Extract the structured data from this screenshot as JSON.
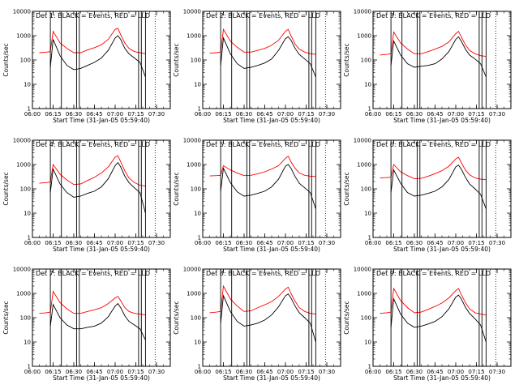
{
  "chart_data": {
    "type": "line",
    "xlabel": "Start Time (31-Jan-05 05:59:40)",
    "ylabel": "Counts/sec",
    "y_scale": "log",
    "ylim": [
      1,
      10000
    ],
    "y_ticks": [
      1,
      10,
      100,
      1000,
      10000
    ],
    "y_tick_labels": [
      "1",
      "10",
      "100",
      "1000",
      "10000"
    ],
    "xlim": [
      "06:00",
      "07:40"
    ],
    "x_ticks": [
      "06:00",
      "06:15",
      "06:30",
      "06:45",
      "07:00",
      "07:15",
      "07:30"
    ],
    "grid": false,
    "series_names": [
      "Events",
      "LLD"
    ],
    "series_colors": {
      "Events": "#000000",
      "LLD": "#ff0000"
    },
    "vertical_markers": [
      "06:13",
      "06:21",
      "06:32",
      "06:34",
      "07:17",
      "07:19",
      "07:22"
    ],
    "dotted_marker": "07:29",
    "sample_times": [
      "06:00",
      "06:05",
      "06:10",
      "06:13",
      "06:15",
      "06:20",
      "06:25",
      "06:30",
      "06:35",
      "06:40",
      "06:45",
      "06:50",
      "06:55",
      "07:00",
      "07:02",
      "07:04",
      "07:07",
      "07:10",
      "07:14",
      "07:18",
      "07:22"
    ],
    "panels": [
      {
        "title": "Det 1: BLACK = Events, RED = LLD",
        "series": [
          {
            "name": "Events",
            "values": [
              null,
              null,
              null,
              50,
              700,
              150,
              60,
              40,
              45,
              60,
              80,
              120,
              250,
              800,
              1000,
              700,
              300,
              180,
              120,
              80,
              20
            ]
          },
          {
            "name": "LLD",
            "values": [
              null,
              200,
              210,
              220,
              1500,
              500,
              300,
              200,
              200,
              260,
              320,
              420,
              700,
              1800,
              2000,
              1100,
              500,
              300,
              220,
              200,
              180
            ]
          }
        ]
      },
      {
        "title": "Det 2: BLACK = Events, RED = LLD",
        "series": [
          {
            "name": "Events",
            "values": [
              null,
              null,
              null,
              60,
              800,
              180,
              70,
              45,
              50,
              60,
              75,
              110,
              250,
              750,
              900,
              650,
              300,
              170,
              110,
              70,
              20
            ]
          },
          {
            "name": "LLD",
            "values": [
              null,
              190,
              200,
              210,
              1800,
              600,
              330,
              210,
              210,
              250,
              300,
              400,
              650,
              1500,
              1800,
              1000,
              450,
              280,
              210,
              180,
              170
            ]
          }
        ]
      },
      {
        "title": "Det 3: BLACK = Events, RED = LLD",
        "series": [
          {
            "name": "Events",
            "values": [
              null,
              null,
              null,
              60,
              600,
              160,
              70,
              50,
              55,
              60,
              70,
              110,
              220,
              700,
              900,
              600,
              280,
              160,
              110,
              70,
              20
            ]
          },
          {
            "name": "LLD",
            "values": [
              null,
              160,
              170,
              180,
              1400,
              500,
              280,
              180,
              180,
              220,
              280,
              360,
              550,
              1200,
              1500,
              900,
              420,
              250,
              180,
              150,
              140
            ]
          }
        ]
      },
      {
        "title": "Det 4: BLACK = Events, RED = LLD",
        "series": [
          {
            "name": "Events",
            "values": [
              null,
              null,
              null,
              70,
              650,
              160,
              70,
              45,
              50,
              65,
              80,
              120,
              260,
              900,
              1200,
              800,
              330,
              180,
              110,
              70,
              10
            ]
          },
          {
            "name": "LLD",
            "values": [
              null,
              170,
              180,
              190,
              1000,
              400,
              230,
              150,
              160,
              220,
              300,
              450,
              800,
              2000,
              2300,
              1300,
              550,
              280,
              180,
              140,
              130
            ]
          }
        ]
      },
      {
        "title": "Det 5: BLACK = Events, RED = LLD",
        "series": [
          {
            "name": "Events",
            "values": [
              null,
              null,
              null,
              80,
              700,
              180,
              75,
              50,
              55,
              65,
              80,
              120,
              250,
              850,
              1000,
              700,
              320,
              170,
              110,
              70,
              15
            ]
          },
          {
            "name": "LLD",
            "values": [
              null,
              340,
              350,
              360,
              900,
              600,
              450,
              350,
              360,
              420,
              500,
              650,
              900,
              1800,
              2200,
              1300,
              700,
              450,
              360,
              330,
              320
            ]
          }
        ]
      },
      {
        "title": "Det 6: BLACK = Events, RED = LLD",
        "series": [
          {
            "name": "Events",
            "values": [
              null,
              null,
              null,
              70,
              600,
              170,
              70,
              50,
              55,
              65,
              80,
              120,
              240,
              800,
              950,
              650,
              300,
              160,
              100,
              60,
              15
            ]
          },
          {
            "name": "LLD",
            "values": [
              null,
              280,
              290,
              300,
              1000,
              500,
              350,
              260,
              270,
              330,
              420,
              560,
              850,
              1700,
              2000,
              1200,
              600,
              380,
              280,
              250,
              240
            ]
          }
        ]
      },
      {
        "title": "Det 7: BLACK = Events, RED = LLD",
        "series": [
          {
            "name": "Events",
            "values": [
              null,
              null,
              null,
              45,
              350,
              100,
              50,
              35,
              35,
              40,
              45,
              60,
              110,
              300,
              380,
              260,
              120,
              70,
              50,
              35,
              12
            ]
          },
          {
            "name": "LLD",
            "values": [
              null,
              150,
              160,
              170,
              1200,
              420,
              230,
              150,
              150,
              180,
              210,
              260,
              380,
              650,
              750,
              500,
              260,
              180,
              150,
              140,
              130
            ]
          }
        ]
      },
      {
        "title": "Det 8: BLACK = Events, RED = LLD",
        "series": [
          {
            "name": "Events",
            "values": [
              null,
              null,
              null,
              60,
              800,
              180,
              70,
              45,
              50,
              60,
              80,
              130,
              280,
              800,
              950,
              650,
              300,
              160,
              100,
              60,
              10
            ]
          },
          {
            "name": "LLD",
            "values": [
              null,
              160,
              170,
              180,
              2000,
              600,
              300,
              180,
              190,
              260,
              340,
              460,
              750,
              1500,
              1800,
              1000,
              480,
              260,
              180,
              150,
              140
            ]
          }
        ]
      },
      {
        "title": "Det 9: BLACK = Events, RED = LLD",
        "series": [
          {
            "name": "Events",
            "values": [
              null,
              null,
              null,
              40,
              600,
              140,
              60,
              40,
              45,
              55,
              70,
              110,
              230,
              700,
              850,
              600,
              270,
              150,
              90,
              50,
              10
            ]
          },
          {
            "name": "LLD",
            "values": [
              null,
              150,
              160,
              170,
              1600,
              500,
              260,
              160,
              170,
              220,
              290,
              400,
              650,
              1300,
              1600,
              900,
              420,
              230,
              160,
              140,
              130
            ]
          }
        ]
      }
    ]
  }
}
